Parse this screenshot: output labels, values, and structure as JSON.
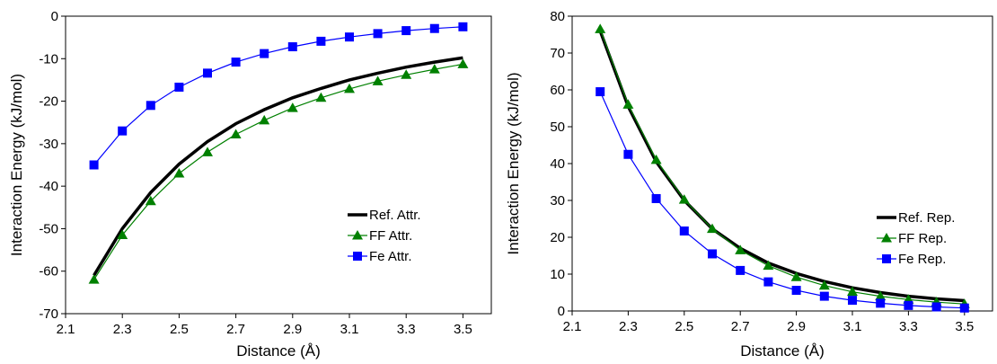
{
  "chart_data": [
    {
      "type": "line",
      "xlabel": "Distance (Å)",
      "ylabel": "Interaction Energy (kJ/mol)",
      "xlim": [
        2.1,
        3.6
      ],
      "ylim": [
        -70,
        0
      ],
      "xticks": [
        2.1,
        2.3,
        2.5,
        2.7,
        2.9,
        3.1,
        3.3,
        3.5
      ],
      "yticks": [
        0,
        -10,
        -20,
        -30,
        -40,
        -50,
        -60,
        -70
      ],
      "x": [
        2.2,
        2.3,
        2.4,
        2.5,
        2.6,
        2.7,
        2.8,
        2.9,
        3.0,
        3.1,
        3.2,
        3.3,
        3.4,
        3.5
      ],
      "legend_position": "bottom-right",
      "grid": false,
      "series": [
        {
          "name": "Ref. Attr.",
          "color": "#000000",
          "marker": "none",
          "values": [
            -61,
            -50,
            -41.5,
            -34.8,
            -29.5,
            -25.3,
            -22,
            -19.2,
            -17,
            -15,
            -13.4,
            -12,
            -10.8,
            -9.8
          ]
        },
        {
          "name": "FF Attr.",
          "color": "#008000",
          "marker": "triangle",
          "values": [
            -62,
            -51.5,
            -43.5,
            -37,
            -32,
            -27.8,
            -24.5,
            -21.6,
            -19.2,
            -17.1,
            -15.3,
            -13.8,
            -12.5,
            -11.3
          ]
        },
        {
          "name": "Fe Attr.",
          "color": "#0000ff",
          "marker": "square",
          "values": [
            -35,
            -27,
            -21,
            -16.7,
            -13.4,
            -10.8,
            -8.8,
            -7.2,
            -5.9,
            -4.9,
            -4.1,
            -3.4,
            -2.9,
            -2.5
          ]
        }
      ]
    },
    {
      "type": "line",
      "xlabel": "Distance (Å)",
      "ylabel": "Interaction Energy (kJ/mol)",
      "xlim": [
        2.1,
        3.6
      ],
      "ylim": [
        0,
        80
      ],
      "xticks": [
        2.1,
        2.3,
        2.5,
        2.7,
        2.9,
        3.1,
        3.3,
        3.5
      ],
      "yticks": [
        0,
        10,
        20,
        30,
        40,
        50,
        60,
        70,
        80
      ],
      "x": [
        2.2,
        2.3,
        2.4,
        2.5,
        2.6,
        2.7,
        2.8,
        2.9,
        3.0,
        3.1,
        3.2,
        3.3,
        3.4,
        3.5
      ],
      "legend_position": "middle-right",
      "grid": false,
      "series": [
        {
          "name": "Ref. Rep.",
          "color": "#000000",
          "marker": "none",
          "values": [
            76,
            55.5,
            40.5,
            30,
            22.3,
            17,
            13,
            10.2,
            8,
            6.3,
            5,
            4,
            3.3,
            2.8
          ]
        },
        {
          "name": "FF Rep.",
          "color": "#008000",
          "marker": "triangle",
          "values": [
            76.5,
            56,
            41,
            30.2,
            22.3,
            16.5,
            12.3,
            9.2,
            6.9,
            5.2,
            4,
            3.1,
            2.4,
            1.9
          ]
        },
        {
          "name": "Fe Rep.",
          "color": "#0000ff",
          "marker": "square",
          "values": [
            59.5,
            42.5,
            30.5,
            21.7,
            15.5,
            11,
            7.9,
            5.6,
            4,
            2.9,
            2.1,
            1.5,
            1.1,
            0.8
          ]
        }
      ]
    }
  ]
}
